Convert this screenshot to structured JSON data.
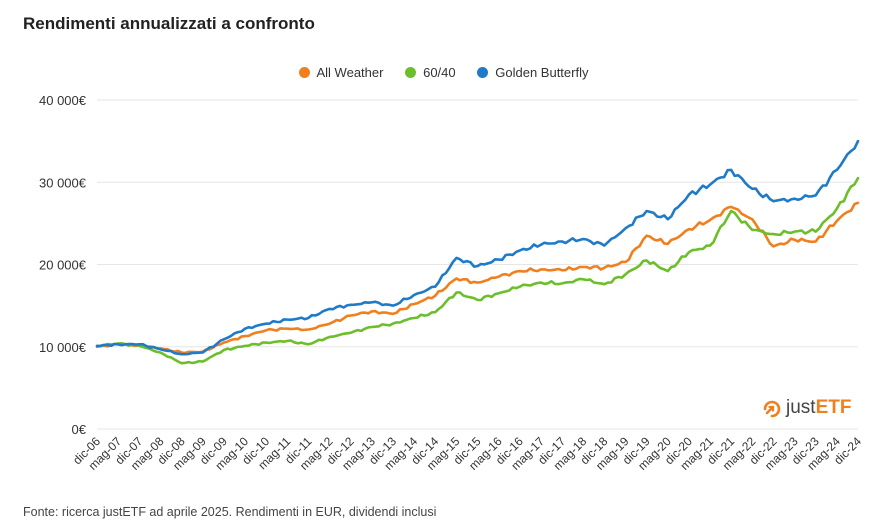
{
  "title": "Rendimenti annualizzati a confronto",
  "source": "Fonte: ricerca justETF ad aprile 2025. Rendimenti in EUR, dividendi inclusi",
  "brand": {
    "prefix": "just",
    "suffix": "ETF",
    "icon": "justetf-logo-icon"
  },
  "colors": {
    "all_weather": "#f07f1e",
    "sixty_forty": "#6cbf2a",
    "golden_butterfly": "#1f7ac8",
    "grid": "#e6e6e6",
    "axis_text": "#333333"
  },
  "chart_data": {
    "type": "line",
    "title": "Rendimenti annualizzati a confronto",
    "xlabel": "",
    "ylabel": "",
    "ylim": [
      0,
      40000
    ],
    "yticks": [
      0,
      10000,
      20000,
      30000,
      40000
    ],
    "ytick_labels": [
      "0€",
      "10 000€",
      "20 000€",
      "30 000€",
      "40 000€"
    ],
    "grid": true,
    "legend_position": "top-center",
    "x": [
      "dic-06",
      "mag-07",
      "dic-07",
      "mag-08",
      "dic-08",
      "mag-09",
      "dic-09",
      "mag-10",
      "dic-10",
      "mag-11",
      "dic-11",
      "mag-12",
      "dic-12",
      "mag-13",
      "dic-13",
      "mag-14",
      "dic-14",
      "mag-15",
      "dic-15",
      "mag-16",
      "dic-16",
      "mag-17",
      "dic-17",
      "mag-18",
      "dic-18",
      "mag-19",
      "dic-19",
      "mag-20",
      "dic-20",
      "mag-21",
      "dic-21",
      "mag-22",
      "dic-22",
      "mag-23",
      "dic-23",
      "mag-24",
      "dic-24"
    ],
    "series": [
      {
        "name": "All Weather",
        "color": "#f07f1e",
        "values": [
          10000,
          10300,
          10150,
          9800,
          9300,
          9400,
          10500,
          11300,
          12000,
          12200,
          12100,
          12800,
          13800,
          14300,
          14000,
          15200,
          16200,
          18300,
          17800,
          18500,
          19200,
          19400,
          19300,
          19700,
          19600,
          20300,
          23500,
          22500,
          24300,
          25400,
          27000,
          25500,
          22200,
          23000,
          22800,
          25300,
          27500
        ]
      },
      {
        "name": "60/40",
        "color": "#6cbf2a",
        "values": [
          10100,
          10400,
          10100,
          9300,
          8000,
          8200,
          9600,
          10100,
          10500,
          10700,
          10300,
          11200,
          11700,
          12400,
          12800,
          13500,
          14200,
          16600,
          15700,
          16500,
          17300,
          17800,
          17700,
          18200,
          17600,
          18800,
          20500,
          19200,
          21500,
          22300,
          26500,
          24200,
          23700,
          24000,
          24000,
          26800,
          30500
        ]
      },
      {
        "name": "Golden Butterfly",
        "color": "#1f7ac8",
        "values": [
          10100,
          10300,
          10300,
          9700,
          9100,
          9300,
          10900,
          12200,
          12800,
          13300,
          13500,
          14600,
          15100,
          15400,
          15000,
          16300,
          17300,
          20800,
          19800,
          20600,
          21700,
          22400,
          22800,
          23100,
          22300,
          24400,
          26500,
          25500,
          28500,
          29700,
          31500,
          29200,
          27700,
          28000,
          28400,
          31500,
          35000
        ]
      }
    ]
  }
}
